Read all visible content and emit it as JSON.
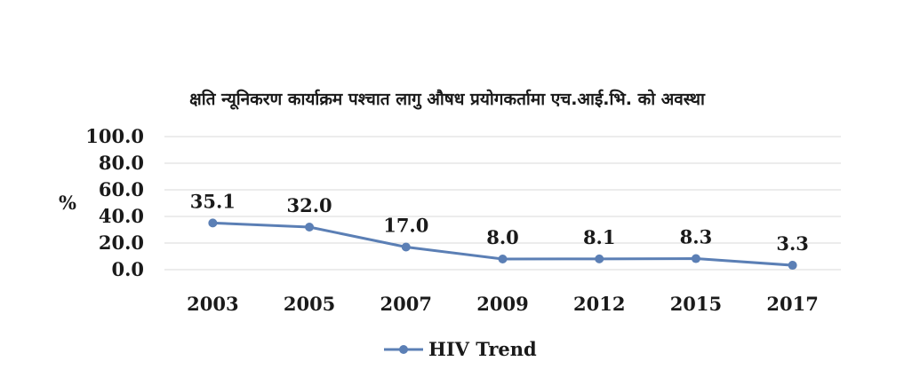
{
  "chart_data": {
    "type": "line",
    "title": "क्षति न्यूनिकरण कार्याक्रम पश्चात लागु औषध प्रयोगकर्तामा एच.आई.भि. को अवस्था",
    "xlabel": "",
    "ylabel": "%",
    "categories": [
      "2003",
      "2005",
      "2007",
      "2009",
      "2012",
      "2015",
      "2017"
    ],
    "series": [
      {
        "name": "HIV Trend",
        "values": [
          35.1,
          32.0,
          17.0,
          8.0,
          8.1,
          8.3,
          3.3
        ],
        "labels": [
          "35.1",
          "32.0",
          "17.0",
          "8.0",
          "8.1",
          "8.3",
          "3.3"
        ],
        "color": "#5b7fb5"
      }
    ],
    "ylim": [
      0,
      100
    ],
    "y_ticks": [
      "0.0",
      "20.0",
      "40.0",
      "60.0",
      "80.0",
      "100.0"
    ],
    "grid": true,
    "legend_position": "bottom"
  }
}
